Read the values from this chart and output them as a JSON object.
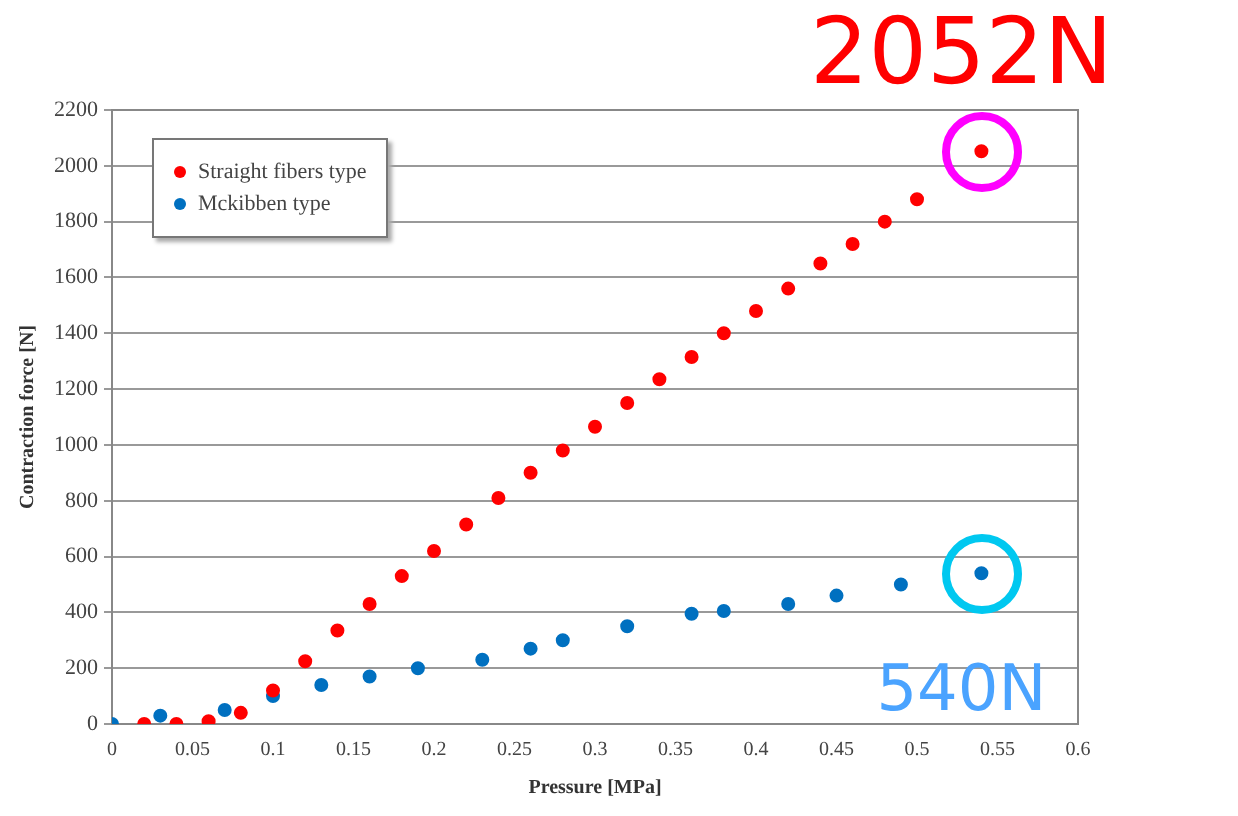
{
  "chart_data": {
    "type": "scatter",
    "xlabel": "Pressure [MPa]",
    "ylabel": "Contraction force [N]",
    "xlim": [
      0,
      0.6
    ],
    "xticks": [
      0,
      0.05,
      0.1,
      0.15,
      0.2,
      0.25,
      0.3,
      0.35,
      0.4,
      0.45,
      0.5,
      0.55,
      0.6
    ],
    "ylim": [
      0,
      2200
    ],
    "yticks": [
      0,
      200,
      400,
      600,
      800,
      1000,
      1200,
      1400,
      1600,
      1800,
      2000,
      2200
    ],
    "grid": "y",
    "legend": "top left",
    "marker": "circle",
    "series": [
      {
        "name": "Straight fibers type",
        "color": "#ff0000",
        "x": [
          0.02,
          0.04,
          0.06,
          0.08,
          0.1,
          0.12,
          0.14,
          0.16,
          0.18,
          0.2,
          0.22,
          0.24,
          0.26,
          0.28,
          0.3,
          0.32,
          0.34,
          0.36,
          0.38,
          0.4,
          0.42,
          0.44,
          0.46,
          0.48,
          0.5,
          0.54
        ],
        "values": [
          0,
          0,
          10,
          40,
          120,
          225,
          335,
          430,
          530,
          620,
          715,
          810,
          900,
          980,
          1065,
          1150,
          1235,
          1315,
          1400,
          1480,
          1560,
          1650,
          1720,
          1800,
          1880,
          2052
        ]
      },
      {
        "name": "Mckibben type",
        "color": "#0070c0",
        "x": [
          0,
          0.03,
          0.07,
          0.1,
          0.13,
          0.16,
          0.19,
          0.23,
          0.26,
          0.28,
          0.32,
          0.36,
          0.38,
          0.42,
          0.45,
          0.49,
          0.54
        ],
        "values": [
          0,
          30,
          50,
          100,
          140,
          170,
          200,
          230,
          270,
          300,
          350,
          395,
          405,
          430,
          460,
          500,
          540
        ]
      }
    ],
    "annotations": [
      {
        "text": "2052N",
        "x": 0.54,
        "y": 2052
      },
      {
        "text": "540N",
        "x": 0.54,
        "y": 540
      }
    ]
  }
}
